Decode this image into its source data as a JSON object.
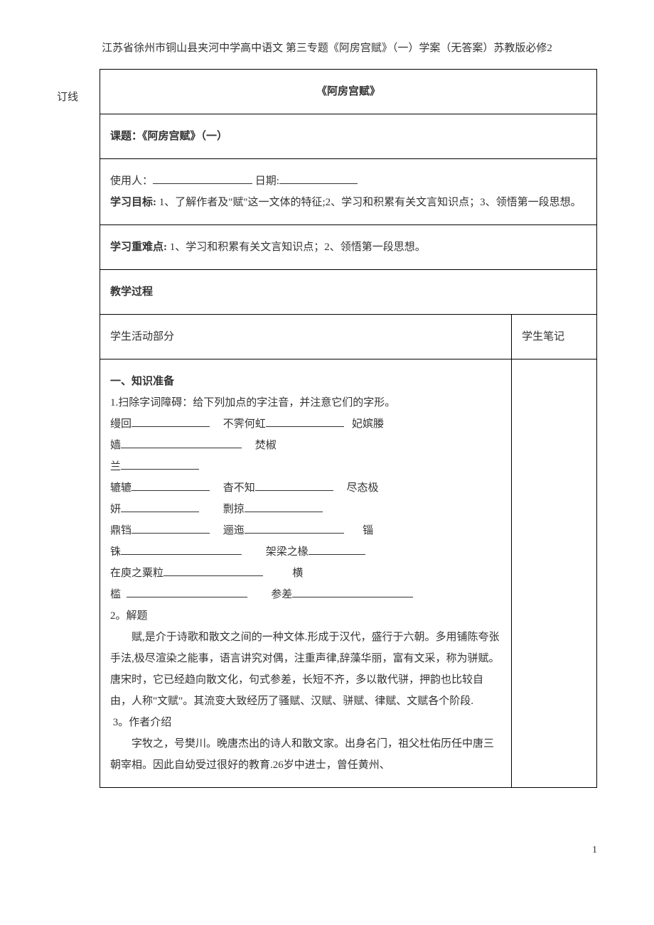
{
  "header": "江苏省徐州市铜山县夹河中学高中语文 第三专题《阿房宫赋》（一）学案（无答案）苏教版必修2",
  "marginLabel": "订线",
  "title": "《阿房宫赋》",
  "lessonTopic": "课题：《阿房宫赋》（一）",
  "userLabel": "使用人：",
  "dateLabel": "日期:",
  "goalsLabel": "学习目标:",
  "goalsText": "1、了解作者及\"赋\"这一文体的特征;2、学习和积累有关文言知识点；3、领悟第一段思想。",
  "difficultyLabel": "学习重难点:",
  "difficultyText": "1、学习和积累有关文言知识点；2、领悟第一段思想。",
  "processHeading": "教学过程",
  "activityHeading": "学生活动部分",
  "notesHeading": "学生笔记",
  "section1": "一、知识准备",
  "item1Label": "1.扫除字词障碍：给下列加点的字注音，并注意它们的字形。",
  "vocab": {
    "v1": "缦回",
    "v2": "不霁何虹",
    "v3": "妃嫔媵",
    "v4": "嫱",
    "v5": "焚椒",
    "v6": "兰",
    "v7": "辘辘",
    "v8": "杳不知",
    "v9": "尽态极",
    "v10": "妍",
    "v11": "剽掠",
    "v12": "鼎铛",
    "v13": "逦迤",
    "v14": "锱",
    "v15": "铢",
    "v16": "架梁之椽",
    "v17": "在庾之粟粒",
    "v18": "横",
    "v19": "槛",
    "v20": "参差"
  },
  "item2Label": "2。解题",
  "item2Text": "赋,是介于诗歌和散文之间的一种文体.形成于汉代，盛行于六朝。多用铺陈夸张手法,极尽渲染之能事，语言讲究对偶，注重声律,辞藻华丽，富有文采，称为骈赋。唐宋时，它已经趋向散文化，句式参差，长短不齐，多以散代骈，押韵也比较自由，人称\"文赋\"。其流变大致经历了骚赋、汉赋、骈赋、律赋、文赋各个阶段.",
  "item3Label": "3。作者介绍",
  "item3Text": "字牧之，号樊川。晚唐杰出的诗人和散文家。出身名门，祖父杜佑历任中唐三朝宰相。因此自幼受过很好的教育.26岁中进士，曾任黄州、",
  "pageNumber": "1",
  "colors": {
    "text": "#333333",
    "border": "#000000",
    "background": "#ffffff"
  }
}
